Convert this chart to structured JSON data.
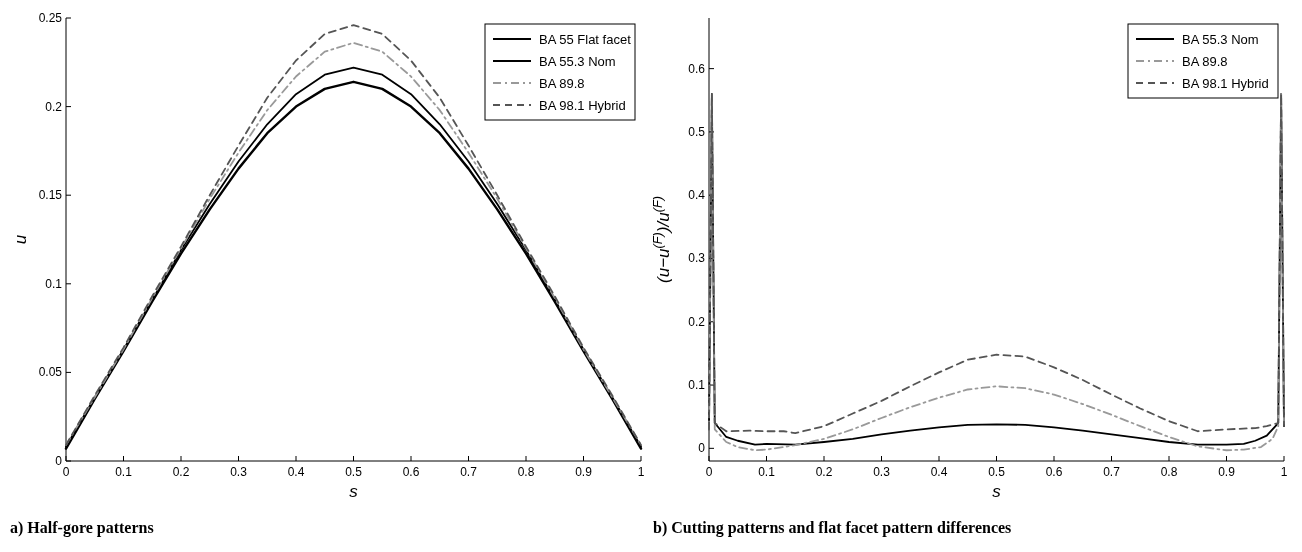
{
  "chart_data": [
    {
      "type": "line",
      "title": "a) Half-gore patterns",
      "xlabel": "s",
      "ylabel": "u",
      "xlim": [
        0,
        1
      ],
      "ylim": [
        0,
        0.25
      ],
      "xticks": [
        0,
        0.1,
        0.2,
        0.3,
        0.4,
        0.5,
        0.6,
        0.7,
        0.8,
        0.9,
        1
      ],
      "yticks": [
        0,
        0.05,
        0.1,
        0.15,
        0.2,
        0.25
      ],
      "legend": "top right",
      "grid": false,
      "x": [
        0,
        0.05,
        0.1,
        0.15,
        0.2,
        0.25,
        0.3,
        0.35,
        0.4,
        0.45,
        0.5,
        0.55,
        0.6,
        0.65,
        0.7,
        0.75,
        0.8,
        0.85,
        0.9,
        0.95,
        1
      ],
      "series": [
        {
          "name": "BA 55 Flat facet",
          "color": "#000000",
          "line_style": "solid",
          "values": [
            0.007,
            0.035,
            0.062,
            0.09,
            0.117,
            0.142,
            0.165,
            0.185,
            0.2,
            0.21,
            0.214,
            0.21,
            0.2,
            0.185,
            0.165,
            0.142,
            0.117,
            0.09,
            0.062,
            0.035,
            0.007
          ]
        },
        {
          "name": "BA 55.3 Nom",
          "color": "#000000",
          "line_style": "solid",
          "values": [
            0.008,
            0.036,
            0.063,
            0.091,
            0.119,
            0.145,
            0.169,
            0.19,
            0.207,
            0.218,
            0.222,
            0.218,
            0.207,
            0.19,
            0.169,
            0.145,
            0.119,
            0.091,
            0.063,
            0.036,
            0.008
          ]
        },
        {
          "name": "BA 89.8",
          "color": "#999999",
          "line_style": "dashdot",
          "values": [
            0.009,
            0.036,
            0.063,
            0.092,
            0.12,
            0.148,
            0.174,
            0.198,
            0.217,
            0.231,
            0.236,
            0.231,
            0.217,
            0.198,
            0.174,
            0.148,
            0.12,
            0.092,
            0.063,
            0.036,
            0.009
          ]
        },
        {
          "name": "BA 98.1 Hybrid",
          "color": "#555555",
          "line_style": "dashed",
          "values": [
            0.009,
            0.037,
            0.064,
            0.093,
            0.121,
            0.15,
            0.178,
            0.205,
            0.226,
            0.241,
            0.246,
            0.241,
            0.226,
            0.205,
            0.178,
            0.15,
            0.121,
            0.093,
            0.064,
            0.037,
            0.009
          ]
        }
      ]
    },
    {
      "type": "line",
      "title": "b) Cutting patterns and flat facet pattern differences",
      "xlabel": "s",
      "ylabel": "(u−u$^{(F)}$)/u$^{(F)}$",
      "xlim": [
        0,
        1
      ],
      "ylim": [
        -0.02,
        0.68
      ],
      "xticks": [
        0,
        0.1,
        0.2,
        0.3,
        0.4,
        0.5,
        0.6,
        0.7,
        0.8,
        0.9,
        1
      ],
      "yticks": [
        0,
        0.1,
        0.2,
        0.3,
        0.4,
        0.5,
        0.6
      ],
      "legend": "top right",
      "grid": false,
      "series": [
        {
          "name": "BA 55.3 Nom",
          "color": "#000000",
          "line_style": "solid",
          "x": [
            0,
            0.005,
            0.01,
            0.03,
            0.05,
            0.08,
            0.1,
            0.15,
            0.2,
            0.25,
            0.3,
            0.35,
            0.4,
            0.45,
            0.5,
            0.55,
            0.6,
            0.65,
            0.7,
            0.75,
            0.8,
            0.85,
            0.9,
            0.93,
            0.95,
            0.97,
            0.99,
            0.995,
            1
          ],
          "values": [
            0.03,
            0.56,
            0.04,
            0.018,
            0.012,
            0.006,
            0.007,
            0.006,
            0.01,
            0.015,
            0.022,
            0.028,
            0.033,
            0.037,
            0.038,
            0.037,
            0.033,
            0.028,
            0.022,
            0.016,
            0.01,
            0.006,
            0.006,
            0.007,
            0.012,
            0.02,
            0.04,
            0.56,
            0.035
          ]
        },
        {
          "name": "BA 89.8",
          "color": "#999999",
          "line_style": "dashdot",
          "x": [
            0,
            0.005,
            0.01,
            0.03,
            0.05,
            0.08,
            0.1,
            0.15,
            0.2,
            0.25,
            0.3,
            0.35,
            0.4,
            0.45,
            0.5,
            0.55,
            0.6,
            0.65,
            0.7,
            0.75,
            0.8,
            0.85,
            0.9,
            0.93,
            0.96,
            0.98,
            0.99,
            0.995,
            1
          ],
          "values": [
            0.03,
            0.56,
            0.03,
            0.01,
            0.002,
            -0.003,
            -0.002,
            0.005,
            0.015,
            0.03,
            0.048,
            0.065,
            0.08,
            0.093,
            0.098,
            0.095,
            0.085,
            0.07,
            0.053,
            0.035,
            0.018,
            0.003,
            -0.003,
            -0.002,
            0.002,
            0.015,
            0.035,
            0.56,
            0.035
          ]
        },
        {
          "name": "BA 98.1 Hybrid",
          "color": "#555555",
          "line_style": "dashed",
          "x": [
            0,
            0.005,
            0.01,
            0.03,
            0.07,
            0.1,
            0.13,
            0.15,
            0.2,
            0.25,
            0.3,
            0.35,
            0.4,
            0.45,
            0.5,
            0.55,
            0.6,
            0.65,
            0.7,
            0.75,
            0.8,
            0.85,
            0.9,
            0.95,
            0.97,
            0.99,
            0.995,
            1
          ],
          "values": [
            0.03,
            0.56,
            0.04,
            0.027,
            0.028,
            0.027,
            0.027,
            0.024,
            0.035,
            0.055,
            0.075,
            0.098,
            0.12,
            0.14,
            0.148,
            0.145,
            0.128,
            0.108,
            0.085,
            0.063,
            0.043,
            0.027,
            0.03,
            0.032,
            0.035,
            0.04,
            0.56,
            0.035
          ]
        }
      ]
    }
  ]
}
